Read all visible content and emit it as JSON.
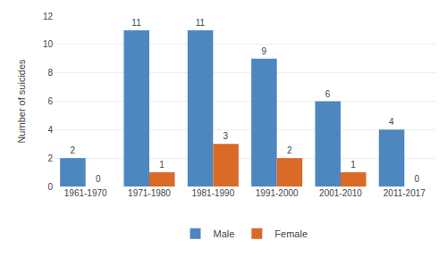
{
  "chart_data": {
    "type": "bar",
    "categories": [
      "1961-1970",
      "1971-1980",
      "1981-1990",
      "1991-2000",
      "2001-2010",
      "2011-2017"
    ],
    "series": [
      {
        "name": "Male",
        "color": "#4e86c0",
        "values": [
          2,
          11,
          11,
          9,
          6,
          4
        ]
      },
      {
        "name": "Female",
        "color": "#d96a27",
        "values": [
          0,
          1,
          3,
          2,
          1,
          0
        ]
      }
    ],
    "ylabel": "Number of suicides",
    "ylim": [
      0,
      12
    ],
    "yticks": [
      0,
      2,
      4,
      6,
      8,
      10,
      12
    ],
    "grid": true,
    "data_labels": true,
    "legend": "bottom"
  }
}
